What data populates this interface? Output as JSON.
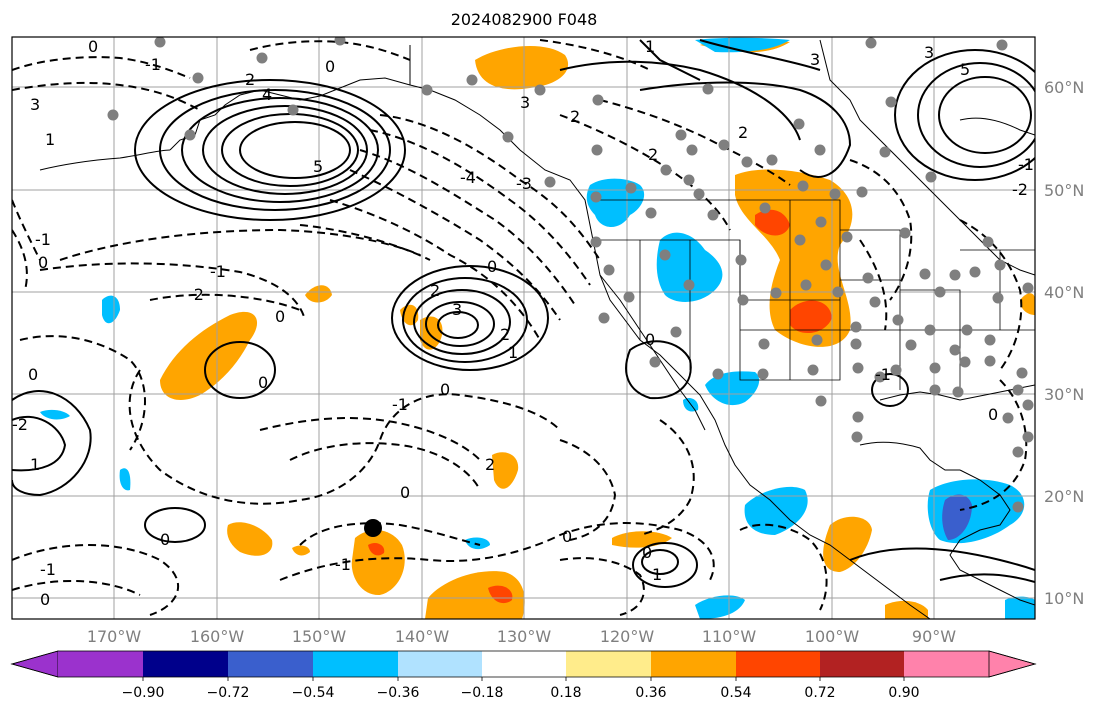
{
  "title": "2024082900 F048",
  "lon_labels": [
    "170°W",
    "160°W",
    "150°W",
    "140°W",
    "130°W",
    "120°W",
    "110°W",
    "100°W",
    "90°W"
  ],
  "lat_labels": [
    "60°N",
    "50°N",
    "40°N",
    "30°N",
    "20°N",
    "10°N"
  ],
  "colorbar": {
    "ticks": [
      "−0.90",
      "−0.72",
      "−0.54",
      "−0.36",
      "−0.18",
      "0.18",
      "0.36",
      "0.54",
      "0.72",
      "0.90"
    ],
    "colors": [
      "#9b32cd",
      "#00008b",
      "#3a5fcd",
      "#00bfff",
      "#b0e2ff",
      "#ffffff",
      "#ffec8b",
      "#ffa500",
      "#ff4500",
      "#b22222",
      "#ff82ab"
    ]
  },
  "contour_labels": [
    "0",
    "1",
    "2",
    "3",
    "4",
    "5",
    "-1",
    "-2",
    "-3",
    "-4"
  ],
  "station_marker_color": "#7f7f7f",
  "point_marker_color": "#000000"
}
